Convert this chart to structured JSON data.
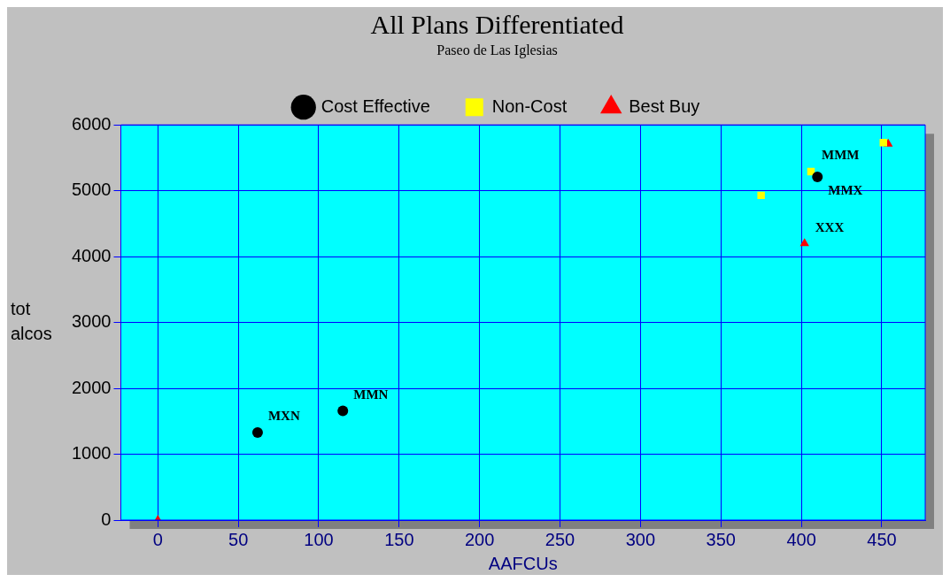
{
  "chart_data": {
    "type": "scatter",
    "title": "All Plans Differentiated",
    "subtitle": "Paseo de Las Iglesias",
    "xlabel": "AAFCUs",
    "ylabel": "tot alcos",
    "series": [
      {
        "name": "Cost Effective",
        "color": "#000000",
        "marker": "circle",
        "x": [
          62,
          115,
          410
        ],
        "values": [
          1330,
          1660,
          5210
        ]
      },
      {
        "name": "Non-Cost",
        "color": "#ffff00",
        "marker": "square",
        "x": [
          375,
          406,
          451
        ],
        "values": [
          4930,
          5290,
          5730
        ]
      },
      {
        "name": "Best Buy",
        "color": "#ff0000",
        "marker": "triangle",
        "x": [
          0,
          402,
          454
        ],
        "values": [
          0,
          4200,
          5710
        ]
      }
    ],
    "annotations": [
      {
        "text": "MXN",
        "x": 62,
        "y": 1330
      },
      {
        "text": "MMN",
        "x": 115,
        "y": 1660
      },
      {
        "text": "MMM",
        "x": 406,
        "y": 5290
      },
      {
        "text": "MMX",
        "x": 410,
        "y": 5210
      },
      {
        "text": "XXX",
        "x": 402,
        "y": 4200
      }
    ],
    "xlim": [
      -23,
      477
    ],
    "xticks": [
      0,
      50,
      100,
      150,
      200,
      250,
      300,
      350,
      400,
      450
    ],
    "ylim": [
      0,
      6000
    ],
    "yticks": [
      0,
      1000,
      2000,
      3000,
      4000,
      5000,
      6000
    ],
    "grid": true,
    "legend": "top"
  }
}
